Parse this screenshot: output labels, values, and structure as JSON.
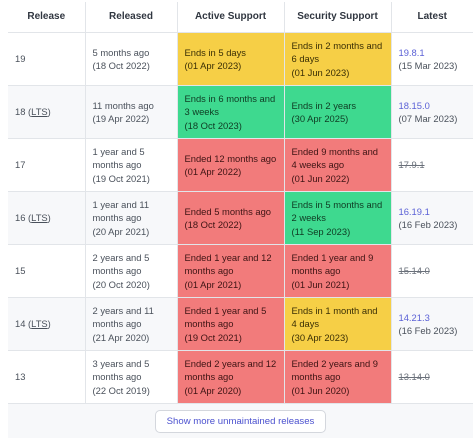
{
  "headers": {
    "release": "Release",
    "released": "Released",
    "active": "Active Support",
    "security": "Security Support",
    "latest": "Latest"
  },
  "rows": [
    {
      "release": "19",
      "lts": "",
      "released_ago": "5 months ago",
      "released_date": "(18 Oct 2022)",
      "active": "Ends in 5 days",
      "active_date": "(01 Apr 2023)",
      "active_status": "yellow",
      "security": "Ends in 2 months and 6 days",
      "security_date": "(01 Jun 2023)",
      "security_status": "yellow",
      "latest": "19.8.1",
      "latest_date": "(15 Mar 2023)",
      "latest_eol": false
    },
    {
      "release": "18",
      "lts": "LTS",
      "released_ago": "11 months ago",
      "released_date": "(19 Apr 2022)",
      "active": "Ends in 6 months and 3 weeks",
      "active_date": "(18 Oct 2023)",
      "active_status": "green",
      "security": "Ends in 2 years",
      "security_date": "(30 Apr 2025)",
      "security_status": "green",
      "latest": "18.15.0",
      "latest_date": "(07 Mar 2023)",
      "latest_eol": false
    },
    {
      "release": "17",
      "lts": "",
      "released_ago": "1 year and 5 months ago",
      "released_date": "(19 Oct 2021)",
      "active": "Ended 12 months ago",
      "active_date": "(01 Apr 2022)",
      "active_status": "red",
      "security": "Ended 9 months and 4 weeks ago",
      "security_date": "(01 Jun 2022)",
      "security_status": "red",
      "latest": "17.9.1",
      "latest_date": "",
      "latest_eol": true
    },
    {
      "release": "16",
      "lts": "LTS",
      "released_ago": "1 year and 11 months ago",
      "released_date": "(20 Apr 2021)",
      "active": "Ended 5 months ago",
      "active_date": "(18 Oct 2022)",
      "active_status": "red",
      "security": "Ends in 5 months and 2 weeks",
      "security_date": "(11 Sep 2023)",
      "security_status": "green",
      "latest": "16.19.1",
      "latest_date": "(16 Feb 2023)",
      "latest_eol": false
    },
    {
      "release": "15",
      "lts": "",
      "released_ago": "2 years and 5 months ago",
      "released_date": "(20 Oct 2020)",
      "active": "Ended 1 year and 12 months ago",
      "active_date": "(01 Apr 2021)",
      "active_status": "red",
      "security": "Ended 1 year and 9 months ago",
      "security_date": "(01 Jun 2021)",
      "security_status": "red",
      "latest": "15.14.0",
      "latest_date": "",
      "latest_eol": true
    },
    {
      "release": "14",
      "lts": "LTS",
      "released_ago": "2 years and 11 months ago",
      "released_date": "(21 Apr 2020)",
      "active": "Ended 1 year and 5 months ago",
      "active_date": "(19 Oct 2021)",
      "active_status": "red",
      "security": "Ends in 1 month and 4 days",
      "security_date": "(30 Apr 2023)",
      "security_status": "yellow",
      "latest": "14.21.3",
      "latest_date": "(16 Feb 2023)",
      "latest_eol": false
    },
    {
      "release": "13",
      "lts": "",
      "released_ago": "3 years and 5 months ago",
      "released_date": "(22 Oct 2019)",
      "active": "Ended 2 years and 12 months ago",
      "active_date": "(01 Apr 2020)",
      "active_status": "red",
      "security": "Ended 2 years and 9 months ago",
      "security_date": "(01 Jun 2020)",
      "security_status": "red",
      "latest": "13.14.0",
      "latest_date": "",
      "latest_eol": true
    }
  ],
  "footer": {
    "show_more_label": "Show more unmaintained releases"
  },
  "colors": {
    "yellow": "#f6cf46",
    "green": "#3ed98f",
    "red": "#f27b7b",
    "link": "#5b61d6"
  }
}
